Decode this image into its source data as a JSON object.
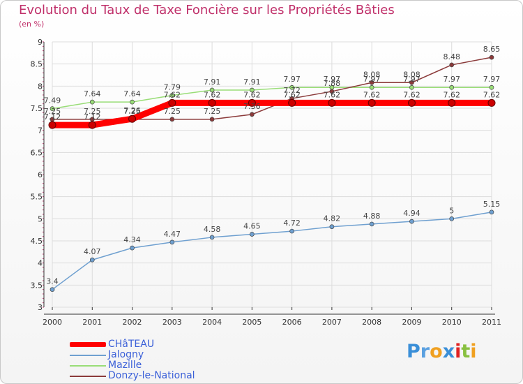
{
  "title": "Evolution du Taux de Taxe Foncière sur les Propriétés Bâties",
  "subtitle": "(en %)",
  "colors": {
    "title": "#c0306a",
    "grid": "#dddddd",
    "axis": "#333333",
    "tick_minor": "#c0306a",
    "legend_text": "#3a5fd8"
  },
  "chart_data": {
    "type": "line",
    "title": "Evolution du Taux de Taxe Foncière sur les Propriétés Bâties",
    "ylabel": "(en %)",
    "xlabel": "",
    "x": [
      "2000",
      "2001",
      "2002",
      "2003",
      "2004",
      "2005",
      "2006",
      "2007",
      "2008",
      "2009",
      "2010",
      "2011"
    ],
    "ylim": [
      3,
      9
    ],
    "yticks": [
      "3",
      "3.5",
      "4",
      "4.5",
      "5",
      "5.5",
      "6",
      "6.5",
      "7",
      "7.5",
      "8",
      "8.5",
      "9"
    ],
    "grid": true,
    "series": [
      {
        "name": "CHâTEAU",
        "color": "#ff0000",
        "values": [
          7.12,
          7.12,
          7.26,
          7.62,
          7.62,
          7.62,
          7.62,
          7.62,
          7.62,
          7.62,
          7.62,
          7.62
        ],
        "labels": [
          "7.12",
          "7.12",
          "7.26",
          "7.62",
          "7.62",
          "7.62",
          "7.62",
          "7.62",
          "7.62",
          "7.62",
          "7.62",
          "7.62"
        ]
      },
      {
        "name": "Jalogny",
        "color": "#6fa0d0",
        "values": [
          3.4,
          4.07,
          4.34,
          4.47,
          4.58,
          4.65,
          4.72,
          4.82,
          4.88,
          4.94,
          5,
          5.15
        ],
        "labels": [
          "3.4",
          "4.07",
          "4.34",
          "4.47",
          "4.58",
          "4.65",
          "4.72",
          "4.82",
          "4.88",
          "4.94",
          "5",
          "5.15"
        ]
      },
      {
        "name": "Mazille",
        "color": "#99dd77",
        "values": [
          7.49,
          7.64,
          7.64,
          7.79,
          7.91,
          7.91,
          7.97,
          7.97,
          7.97,
          7.97,
          7.97,
          7.97
        ],
        "labels": [
          "7.49",
          "7.64",
          "7.64",
          "7.79",
          "7.91",
          "7.91",
          "7.97",
          "7.97",
          "7.97",
          "7.97",
          "7.97",
          "7.97"
        ]
      },
      {
        "name": "Donzy-le-National",
        "color": "#8b3a3a",
        "values": [
          7.25,
          7.25,
          7.25,
          7.25,
          7.25,
          7.36,
          7.72,
          7.88,
          8.08,
          8.08,
          8.48,
          8.65
        ],
        "labels": [
          "7.25",
          "7.25",
          "7.25",
          "7.25",
          "7.25",
          "7.36",
          "7.72",
          "7.88",
          "8.08",
          "8.08",
          "8.48",
          "8.65"
        ]
      }
    ]
  },
  "legend": [
    {
      "label": "CHâTEAU"
    },
    {
      "label": "Jalogny"
    },
    {
      "label": "Mazille"
    },
    {
      "label": "Donzy-le-National"
    }
  ],
  "logo": {
    "letters": [
      "P",
      "r",
      "o",
      "x",
      "i",
      "t",
      "i"
    ],
    "colors": [
      "#3a8fd8",
      "#5aa0e0",
      "#f0a020",
      "#3a8fd8",
      "#e02020",
      "#88c040",
      "#f0a020"
    ]
  }
}
